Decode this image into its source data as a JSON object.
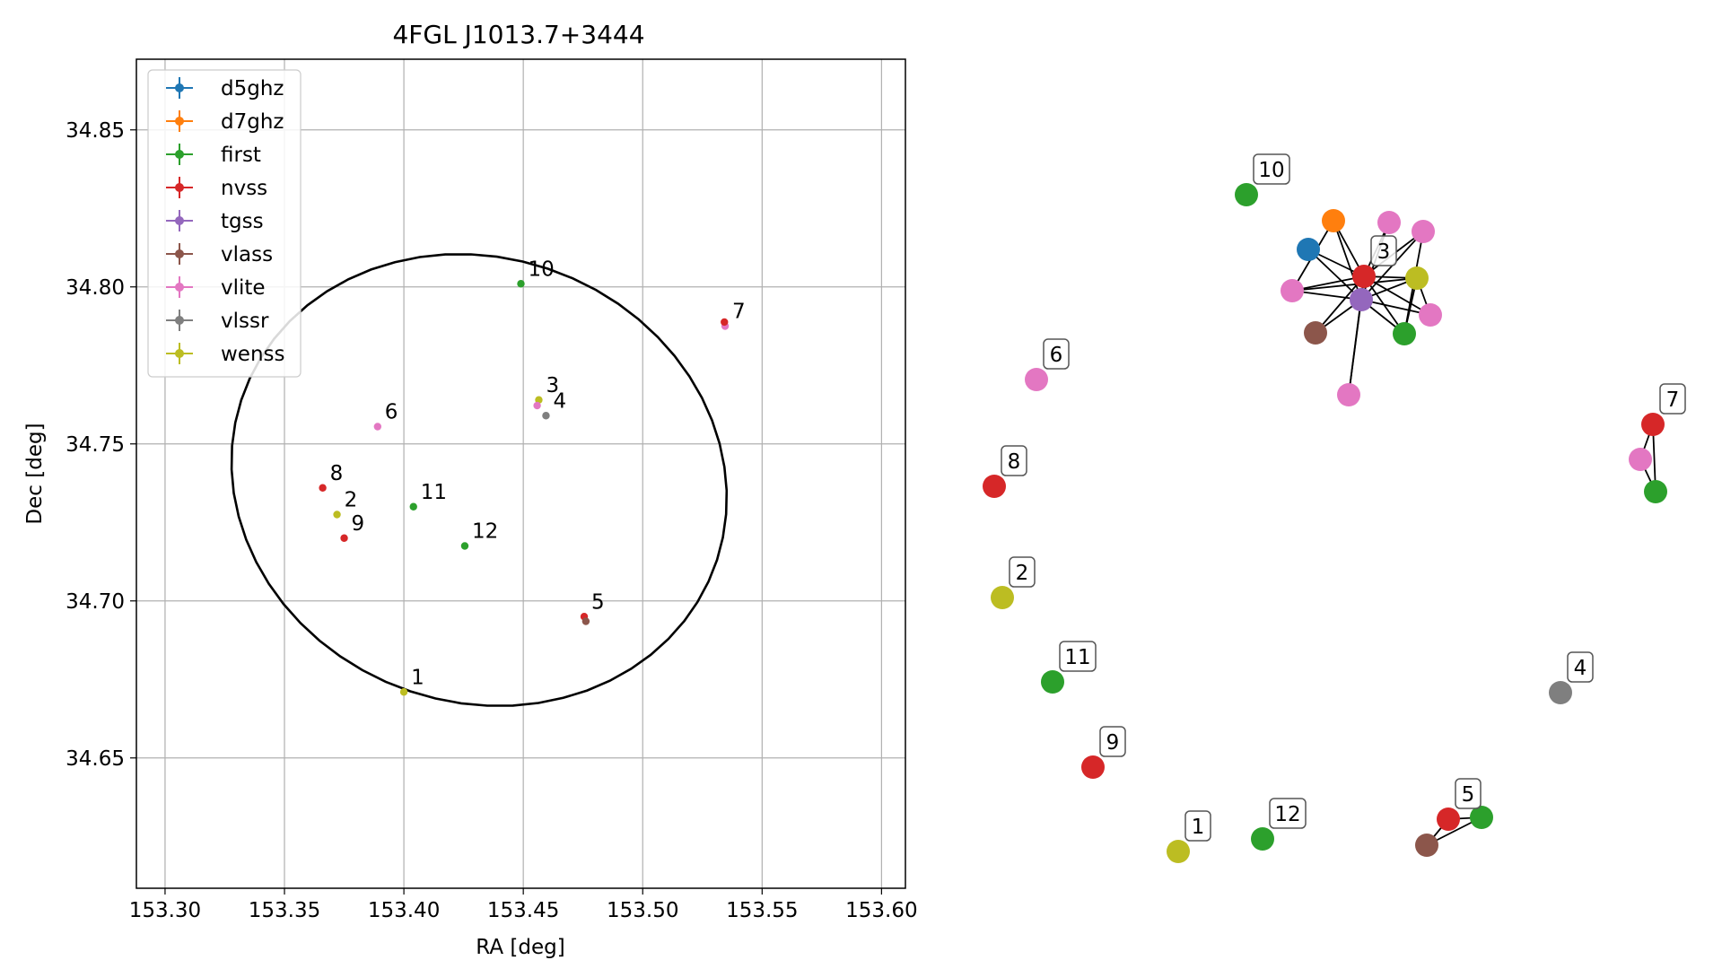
{
  "colors": {
    "d5ghz": "#1f77b4",
    "d7ghz": "#ff7f0e",
    "first": "#2ca02c",
    "nvss": "#d62728",
    "tgss": "#9467bd",
    "vlass": "#8c564b",
    "vlite": "#e377c2",
    "vlssr": "#7f7f7f",
    "wenss": "#bcbd22"
  },
  "chart_data": [
    {
      "type": "scatter",
      "title": "4FGL J1013.7+3444",
      "xlabel": "RA [deg]",
      "ylabel": "Dec [deg]",
      "xlim": [
        153.288,
        153.61
      ],
      "ylim": [
        34.6085,
        34.8725
      ],
      "xticks": [
        "153.30",
        "153.35",
        "153.40",
        "153.45",
        "153.50",
        "153.55",
        "153.60"
      ],
      "yticks": [
        "34.65",
        "34.70",
        "34.75",
        "34.80",
        "34.85"
      ],
      "grid": true,
      "legend_position": "top-left",
      "legend": [
        "d5ghz",
        "d7ghz",
        "first",
        "nvss",
        "tgss",
        "vlass",
        "vlite",
        "vlssr",
        "wenss"
      ],
      "ellipse": {
        "center": [
          153.4315,
          34.7385
        ],
        "half_width": 0.104,
        "half_height": 0.0715,
        "angle_deg": -6
      },
      "points": [
        {
          "survey": "wenss",
          "ra": 153.4,
          "dec": 34.671
        },
        {
          "survey": "wenss",
          "ra": 153.372,
          "dec": 34.7275
        },
        {
          "survey": "wenss",
          "ra": 153.4565,
          "dec": 34.764
        },
        {
          "survey": "vlite",
          "ra": 153.4558,
          "dec": 34.7622
        },
        {
          "survey": "vlssr",
          "ra": 153.4595,
          "dec": 34.759
        },
        {
          "survey": "nvss",
          "ra": 153.4755,
          "dec": 34.695
        },
        {
          "survey": "vlass",
          "ra": 153.4762,
          "dec": 34.6935
        },
        {
          "survey": "vlite",
          "ra": 153.389,
          "dec": 34.7555
        },
        {
          "survey": "vlite",
          "ra": 153.5345,
          "dec": 34.7875
        },
        {
          "survey": "nvss",
          "ra": 153.5342,
          "dec": 34.7888
        },
        {
          "survey": "nvss",
          "ra": 153.366,
          "dec": 34.736
        },
        {
          "survey": "nvss",
          "ra": 153.375,
          "dec": 34.72
        },
        {
          "survey": "first",
          "ra": 153.449,
          "dec": 34.801
        },
        {
          "survey": "first",
          "ra": 153.404,
          "dec": 34.73
        },
        {
          "survey": "first",
          "ra": 153.4255,
          "dec": 34.7175
        }
      ],
      "point_labels": [
        {
          "text": "1",
          "ra": 153.4,
          "dec": 34.671
        },
        {
          "text": "2",
          "ra": 153.372,
          "dec": 34.7275
        },
        {
          "text": "3",
          "ra": 153.4565,
          "dec": 34.764
        },
        {
          "text": "4",
          "ra": 153.4595,
          "dec": 34.759
        },
        {
          "text": "5",
          "ra": 153.4755,
          "dec": 34.695
        },
        {
          "text": "6",
          "ra": 153.389,
          "dec": 34.7555
        },
        {
          "text": "7",
          "ra": 153.5345,
          "dec": 34.7875
        },
        {
          "text": "8",
          "ra": 153.366,
          "dec": 34.736
        },
        {
          "text": "9",
          "ra": 153.375,
          "dec": 34.72
        },
        {
          "text": "10",
          "ra": 153.449,
          "dec": 34.801
        },
        {
          "text": "11",
          "ra": 153.404,
          "dec": 34.73
        },
        {
          "text": "12",
          "ra": 153.4255,
          "dec": 34.7175
        }
      ]
    },
    {
      "type": "network",
      "nodes": [
        {
          "id": "n1",
          "survey": "wenss",
          "label": "1"
        },
        {
          "id": "n2",
          "survey": "wenss",
          "label": "2"
        },
        {
          "id": "n4",
          "survey": "vlssr",
          "label": "4"
        },
        {
          "id": "n6",
          "survey": "vlite",
          "label": "6"
        },
        {
          "id": "n8",
          "survey": "nvss",
          "label": "8"
        },
        {
          "id": "n9",
          "survey": "nvss",
          "label": "9"
        },
        {
          "id": "n10",
          "survey": "first",
          "label": "10"
        },
        {
          "id": "n11",
          "survey": "first",
          "label": "11"
        },
        {
          "id": "n12",
          "survey": "first",
          "label": "12"
        },
        {
          "id": "c3",
          "survey": "nvss",
          "label": "3"
        },
        {
          "id": "c3_d5",
          "survey": "d5ghz",
          "label": ""
        },
        {
          "id": "c3_d7",
          "survey": "d7ghz",
          "label": ""
        },
        {
          "id": "c3_vl1",
          "survey": "vlite",
          "label": ""
        },
        {
          "id": "c3_vl2",
          "survey": "vlite",
          "label": ""
        },
        {
          "id": "c3_vl3",
          "survey": "vlite",
          "label": ""
        },
        {
          "id": "c3_vl4",
          "survey": "vlite",
          "label": ""
        },
        {
          "id": "c3_vl5",
          "survey": "vlite",
          "label": ""
        },
        {
          "id": "c3_we",
          "survey": "wenss",
          "label": ""
        },
        {
          "id": "c3_tg",
          "survey": "tgss",
          "label": ""
        },
        {
          "id": "c3_va",
          "survey": "vlass",
          "label": ""
        },
        {
          "id": "c3_fi",
          "survey": "first",
          "label": ""
        },
        {
          "id": "c7_nv",
          "survey": "nvss",
          "label": "7"
        },
        {
          "id": "c7_vl",
          "survey": "vlite",
          "label": ""
        },
        {
          "id": "c7_fi",
          "survey": "first",
          "label": ""
        },
        {
          "id": "c5_nv",
          "survey": "nvss",
          "label": "5"
        },
        {
          "id": "c5_fi",
          "survey": "first",
          "label": ""
        },
        {
          "id": "c5_va",
          "survey": "vlass",
          "label": ""
        }
      ],
      "edges": [
        [
          "c3",
          "c3_d5"
        ],
        [
          "c3",
          "c3_d7"
        ],
        [
          "c3",
          "c3_vl1"
        ],
        [
          "c3",
          "c3_vl2"
        ],
        [
          "c3",
          "c3_vl3"
        ],
        [
          "c3",
          "c3_vl4"
        ],
        [
          "c3",
          "c3_vl5"
        ],
        [
          "c3",
          "c3_we"
        ],
        [
          "c3",
          "c3_tg"
        ],
        [
          "c3",
          "c3_va"
        ],
        [
          "c3",
          "c3_fi"
        ],
        [
          "c3_tg",
          "c3_d5"
        ],
        [
          "c3_tg",
          "c3_d7"
        ],
        [
          "c3_tg",
          "c3_vl1"
        ],
        [
          "c3_tg",
          "c3_vl2"
        ],
        [
          "c3_tg",
          "c3_vl3"
        ],
        [
          "c3_tg",
          "c3_vl4"
        ],
        [
          "c3_tg",
          "c3_vl5"
        ],
        [
          "c3_tg",
          "c3_we"
        ],
        [
          "c3_tg",
          "c3_va"
        ],
        [
          "c3_tg",
          "c3_fi"
        ],
        [
          "c3_we",
          "c3_vl3"
        ],
        [
          "c3_we",
          "c3_fi"
        ],
        [
          "c3_we",
          "c3_vl4"
        ],
        [
          "c3_vl3",
          "c3_d7"
        ],
        [
          "c3_vl2",
          "c3_fi"
        ],
        [
          "c7_nv",
          "c7_vl"
        ],
        [
          "c7_nv",
          "c7_fi"
        ],
        [
          "c7_vl",
          "c7_fi"
        ],
        [
          "c5_nv",
          "c5_fi"
        ],
        [
          "c5_nv",
          "c5_va"
        ],
        [
          "c5_fi",
          "c5_va"
        ]
      ]
    }
  ]
}
